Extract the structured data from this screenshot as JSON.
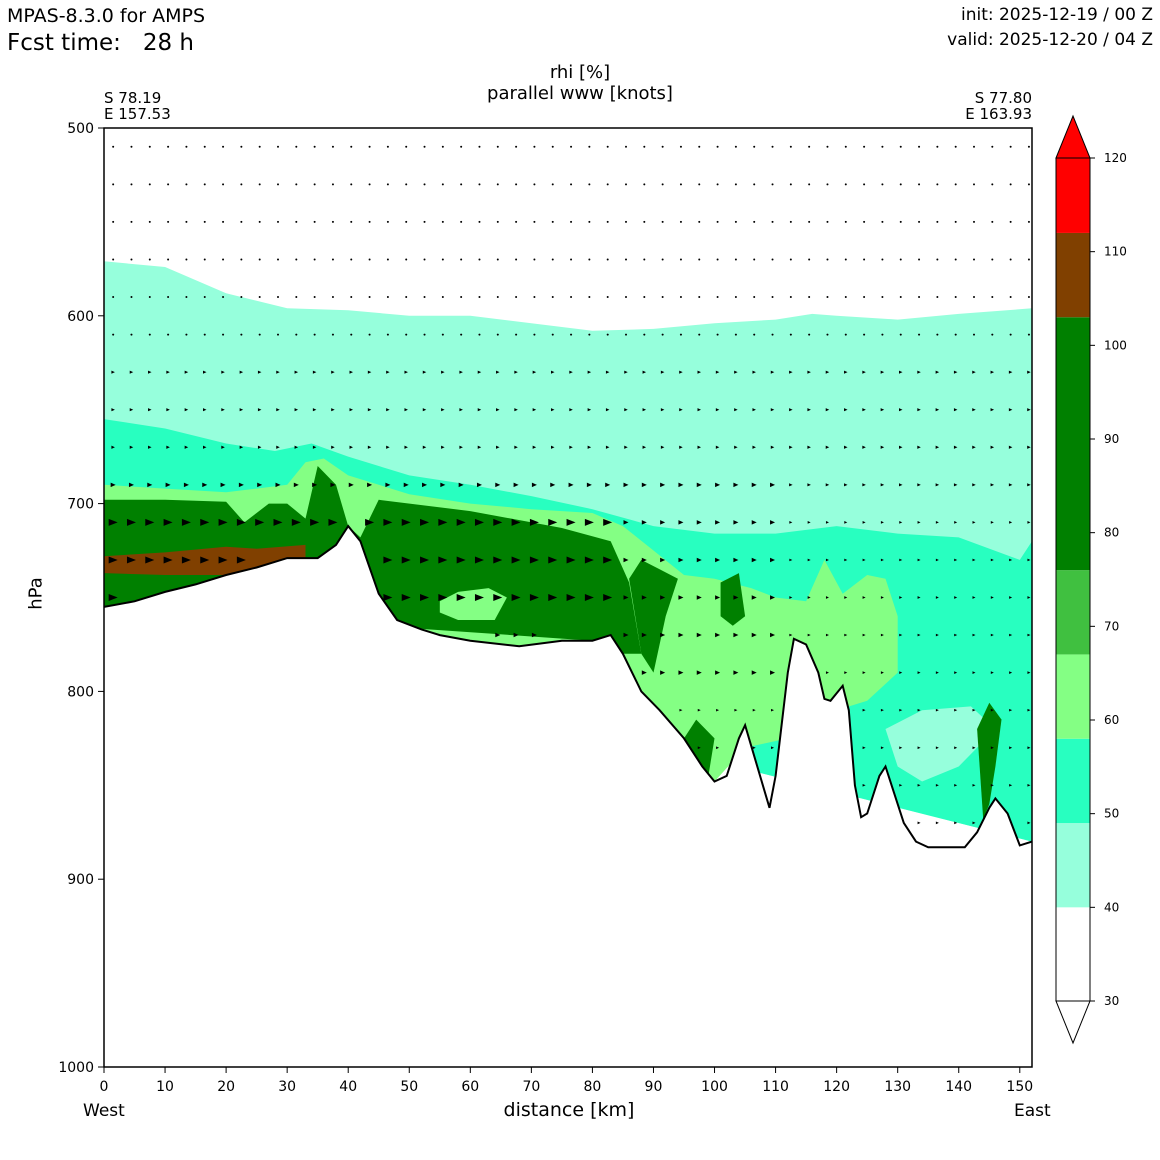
{
  "header": {
    "model": "MPAS-8.3.0 for AMPS",
    "fcst_label": "Fcst time:",
    "fcst_value": "28 h",
    "init": "init: 2025-12-19 / 00 Z",
    "valid": "valid: 2025-12-20 / 04 Z"
  },
  "chart_data": {
    "type": "cross-section contour",
    "title_line1": "rhi [%]",
    "title_line2": "parallel www [knots]",
    "left_point": {
      "lat": "S 78.19",
      "lon": "E 157.53"
    },
    "right_point": {
      "lat": "S 77.80",
      "lon": "E 163.93"
    },
    "xlabel": "distance [km]",
    "ylabel": "hPa",
    "x_left_label": "West",
    "x_right_label": "East",
    "xlim": [
      0,
      152
    ],
    "ylim": [
      1000,
      500
    ],
    "x_ticks": [
      0,
      10,
      20,
      30,
      40,
      50,
      60,
      70,
      80,
      90,
      100,
      110,
      120,
      130,
      140,
      150
    ],
    "y_ticks": [
      500,
      600,
      700,
      800,
      900,
      1000
    ],
    "colorbar": {
      "ticks": [
        30,
        40,
        50,
        60,
        70,
        80,
        90,
        100,
        110,
        120
      ],
      "levels": [
        {
          "from": 30,
          "to": 40,
          "color": "#ffffff"
        },
        {
          "from": 40,
          "to": 49,
          "color": "#96ffdc"
        },
        {
          "from": 49,
          "to": 58,
          "color": "#28ffc0"
        },
        {
          "from": 58,
          "to": 67,
          "color": "#84ff84"
        },
        {
          "from": 67,
          "to": 76,
          "color": "#40c040"
        },
        {
          "from": 76,
          "to": 103,
          "color": "#008000"
        },
        {
          "from": 103,
          "to": 112,
          "color": "#804000"
        },
        {
          "from": 112,
          "to": 120,
          "color": "#ff0000"
        }
      ]
    },
    "terrain": [
      [
        0,
        755
      ],
      [
        5,
        752
      ],
      [
        10,
        747
      ],
      [
        15,
        743
      ],
      [
        20,
        738
      ],
      [
        25,
        734
      ],
      [
        30,
        729
      ],
      [
        35,
        729
      ],
      [
        38,
        722
      ],
      [
        40,
        712
      ],
      [
        42,
        720
      ],
      [
        45,
        748
      ],
      [
        48,
        762
      ],
      [
        52,
        767
      ],
      [
        55,
        770
      ],
      [
        60,
        773
      ],
      [
        68,
        776
      ],
      [
        75,
        773
      ],
      [
        80,
        773
      ],
      [
        83,
        770
      ],
      [
        85,
        780
      ],
      [
        88,
        800
      ],
      [
        91,
        810
      ],
      [
        95,
        825
      ],
      [
        98,
        840
      ],
      [
        100,
        848
      ],
      [
        102,
        845
      ],
      [
        104,
        825
      ],
      [
        105,
        818
      ],
      [
        107,
        840
      ],
      [
        109,
        862
      ],
      [
        110,
        845
      ],
      [
        112,
        790
      ],
      [
        113,
        772
      ],
      [
        115,
        775
      ],
      [
        117,
        790
      ],
      [
        118,
        804
      ],
      [
        119,
        805
      ],
      [
        121,
        797
      ],
      [
        122,
        810
      ],
      [
        123,
        850
      ],
      [
        124,
        867
      ],
      [
        125,
        865
      ],
      [
        127,
        845
      ],
      [
        128,
        840
      ],
      [
        129,
        850
      ],
      [
        131,
        870
      ],
      [
        133,
        880
      ],
      [
        135,
        883
      ],
      [
        139,
        883
      ],
      [
        141,
        883
      ],
      [
        143,
        875
      ],
      [
        145,
        862
      ],
      [
        146,
        857
      ],
      [
        148,
        865
      ],
      [
        150,
        882
      ],
      [
        152,
        880
      ]
    ],
    "regions": [
      {
        "level": 40,
        "points": [
          [
            0,
            571
          ],
          [
            10,
            574
          ],
          [
            20,
            588
          ],
          [
            25,
            592
          ],
          [
            30,
            596
          ],
          [
            40,
            597
          ],
          [
            50,
            600
          ],
          [
            60,
            600
          ],
          [
            70,
            604
          ],
          [
            80,
            608
          ],
          [
            90,
            607
          ],
          [
            100,
            604
          ],
          [
            110,
            602
          ],
          [
            116,
            599
          ],
          [
            120,
            600
          ],
          [
            130,
            602
          ],
          [
            140,
            599
          ],
          [
            152,
            596
          ],
          [
            152,
            880
          ],
          [
            0,
            755
          ]
        ]
      },
      {
        "level": 49,
        "points": [
          [
            0,
            655
          ],
          [
            10,
            660
          ],
          [
            20,
            668
          ],
          [
            28,
            672
          ],
          [
            34,
            668
          ],
          [
            40,
            675
          ],
          [
            50,
            685
          ],
          [
            60,
            690
          ],
          [
            70,
            696
          ],
          [
            80,
            703
          ],
          [
            90,
            712
          ],
          [
            100,
            716
          ],
          [
            110,
            716
          ],
          [
            120,
            712
          ],
          [
            130,
            716
          ],
          [
            140,
            718
          ],
          [
            150,
            730
          ],
          [
            152,
            720
          ],
          [
            152,
            880
          ],
          [
            0,
            755
          ]
        ]
      },
      {
        "level": 58,
        "points": [
          [
            0,
            690
          ],
          [
            10,
            692
          ],
          [
            20,
            694
          ],
          [
            25,
            692
          ],
          [
            30,
            690
          ],
          [
            33,
            678
          ],
          [
            36,
            676
          ],
          [
            40,
            685
          ],
          [
            50,
            695
          ],
          [
            60,
            700
          ],
          [
            70,
            703
          ],
          [
            80,
            705
          ],
          [
            85,
            712
          ],
          [
            90,
            725
          ],
          [
            95,
            738
          ],
          [
            100,
            740
          ],
          [
            106,
            745
          ],
          [
            110,
            750
          ],
          [
            115,
            752
          ],
          [
            118,
            730
          ],
          [
            121,
            748
          ],
          [
            125,
            738
          ],
          [
            128,
            740
          ],
          [
            130,
            760
          ],
          [
            130,
            790
          ],
          [
            125,
            805
          ],
          [
            120,
            810
          ],
          [
            112,
            825
          ],
          [
            105,
            830
          ],
          [
            100,
            848
          ],
          [
            0,
            755
          ]
        ]
      },
      {
        "level": 76,
        "points": [
          [
            0,
            698
          ],
          [
            10,
            698
          ],
          [
            20,
            699
          ],
          [
            23,
            710
          ],
          [
            27,
            700
          ],
          [
            30,
            700
          ],
          [
            33,
            708
          ],
          [
            35,
            680
          ],
          [
            38,
            690
          ],
          [
            40,
            712
          ],
          [
            42,
            718
          ],
          [
            45,
            698
          ],
          [
            60,
            704
          ],
          [
            75,
            713
          ],
          [
            83,
            720
          ],
          [
            86,
            742
          ],
          [
            88,
            780
          ],
          [
            85,
            780
          ],
          [
            83,
            770
          ],
          [
            80,
            773
          ],
          [
            0,
            755
          ]
        ]
      },
      {
        "level": 40,
        "points": [
          [
            47,
            666
          ],
          [
            52,
            660
          ],
          [
            56,
            655
          ],
          [
            58,
            655
          ],
          [
            59,
            672
          ],
          [
            58,
            683
          ],
          [
            50,
            684
          ],
          [
            47,
            678
          ]
        ]
      },
      {
        "level": 40,
        "points": [
          [
            134,
            663
          ],
          [
            140,
            656
          ],
          [
            148,
            651
          ],
          [
            152,
            660
          ],
          [
            152,
            690
          ],
          [
            140,
            688
          ],
          [
            134,
            680
          ]
        ]
      },
      {
        "level": 40,
        "points": [
          [
            128,
            820
          ],
          [
            134,
            810
          ],
          [
            142,
            808
          ],
          [
            146,
            820
          ],
          [
            140,
            840
          ],
          [
            134,
            848
          ],
          [
            130,
            840
          ]
        ]
      },
      {
        "level": 76,
        "points": [
          [
            86,
            740
          ],
          [
            88,
            730
          ],
          [
            91,
            735
          ],
          [
            94,
            740
          ],
          [
            92,
            760
          ],
          [
            90,
            790
          ],
          [
            88,
            780
          ]
        ]
      },
      {
        "level": 76,
        "points": [
          [
            101,
            742
          ],
          [
            104,
            737
          ],
          [
            105,
            760
          ],
          [
            103,
            765
          ],
          [
            101,
            760
          ]
        ]
      },
      {
        "level": 76,
        "points": [
          [
            95,
            825
          ],
          [
            97,
            815
          ],
          [
            100,
            825
          ],
          [
            99,
            845
          ],
          [
            98,
            840
          ]
        ]
      },
      {
        "level": 76,
        "points": [
          [
            143,
            820
          ],
          [
            145,
            806
          ],
          [
            147,
            815
          ],
          [
            146,
            840
          ],
          [
            145,
            860
          ],
          [
            144,
            868
          ]
        ]
      },
      {
        "level": 58,
        "points": [
          [
            55,
            752
          ],
          [
            58,
            747
          ],
          [
            63,
            745
          ],
          [
            66,
            750
          ],
          [
            64,
            762
          ],
          [
            58,
            762
          ],
          [
            55,
            758
          ]
        ]
      },
      {
        "level": 103,
        "points": [
          [
            0,
            728
          ],
          [
            10,
            726
          ],
          [
            20,
            723
          ],
          [
            25,
            724
          ],
          [
            33,
            722
          ],
          [
            33,
            729
          ],
          [
            30,
            729
          ],
          [
            25,
            734
          ],
          [
            20,
            738
          ],
          [
            10,
            738
          ],
          [
            0,
            737
          ]
        ]
      }
    ],
    "wind_rows": [
      510,
      530,
      550,
      570,
      590,
      610,
      630,
      650,
      670,
      690,
      710,
      730,
      750,
      770,
      790,
      810,
      830,
      850,
      870
    ],
    "wind_cols": [
      1.5,
      4.5,
      7.5,
      10.5,
      13.5,
      16.5,
      19.5,
      22.5,
      25.5,
      28.5,
      31.5,
      34.5,
      37.5,
      40.5,
      43.5,
      46.5,
      49.5,
      52.5,
      55.5,
      58.5,
      61.5,
      64.5,
      67.5,
      70.5,
      73.5,
      76.5,
      79.5,
      82.5,
      85.5,
      88.5,
      91.5,
      94.5,
      97.5,
      100.5,
      103.5,
      106.5,
      109.5,
      112.5,
      115.5,
      118.5,
      121.5,
      124.5,
      127.5,
      130.5,
      133.5,
      136.5,
      139.5,
      142.5,
      145.5,
      148.5,
      151.5
    ]
  }
}
